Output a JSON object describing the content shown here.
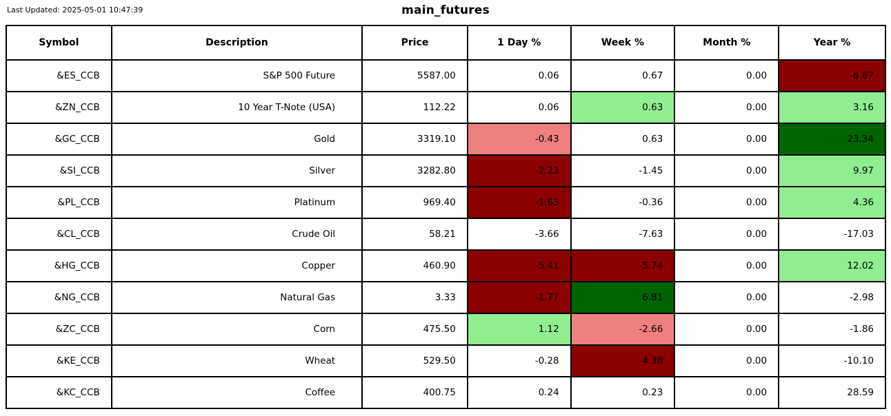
{
  "header": {
    "last_updated": "Last Updated: 2025-05-01 10:47:39",
    "title": "main_futures"
  },
  "colors": {
    "dark_red": "#8b0000",
    "light_red": "#f08080",
    "light_green": "#90ee90",
    "dark_green": "#006400",
    "border": "#000000",
    "background": "#ffffff"
  },
  "table": {
    "columns": [
      "Symbol",
      "Description",
      "Price",
      "1 Day %",
      "Week %",
      "Month %",
      "Year %"
    ],
    "col_widths_pct": [
      11.98,
      28.5,
      11.98,
      11.75,
      11.82,
      11.82,
      12.15
    ],
    "rows": [
      {
        "symbol": "&ES_CCB",
        "description": "S&P 500 Future",
        "price": "5587.00",
        "pct": [
          {
            "t": "0.06",
            "bg": "none"
          },
          {
            "t": "0.67",
            "bg": "none"
          },
          {
            "t": "0.00",
            "bg": "none"
          },
          {
            "t": "-6.67",
            "bg": "dark_red"
          }
        ]
      },
      {
        "symbol": "&ZN_CCB",
        "description": "10 Year T-Note (USA)",
        "price": "112.22",
        "pct": [
          {
            "t": "0.06",
            "bg": "none"
          },
          {
            "t": "0.63",
            "bg": "light_green"
          },
          {
            "t": "0.00",
            "bg": "none"
          },
          {
            "t": "3.16",
            "bg": "light_green"
          }
        ]
      },
      {
        "symbol": "&GC_CCB",
        "description": "Gold",
        "price": "3319.10",
        "pct": [
          {
            "t": "-0.43",
            "bg": "light_red"
          },
          {
            "t": "0.63",
            "bg": "none"
          },
          {
            "t": "0.00",
            "bg": "none"
          },
          {
            "t": "23.34",
            "bg": "dark_green"
          }
        ]
      },
      {
        "symbol": "&SI_CCB",
        "description": "Silver",
        "price": "3282.80",
        "pct": [
          {
            "t": "-2.23",
            "bg": "dark_red"
          },
          {
            "t": "-1.45",
            "bg": "none"
          },
          {
            "t": "0.00",
            "bg": "none"
          },
          {
            "t": "9.97",
            "bg": "light_green"
          }
        ]
      },
      {
        "symbol": "&PL_CCB",
        "description": "Platinum",
        "price": "969.40",
        "pct": [
          {
            "t": "-1.63",
            "bg": "dark_red"
          },
          {
            "t": "-0.36",
            "bg": "none"
          },
          {
            "t": "0.00",
            "bg": "none"
          },
          {
            "t": "4.36",
            "bg": "light_green"
          }
        ]
      },
      {
        "symbol": "&CL_CCB",
        "description": "Crude Oil",
        "price": "58.21",
        "pct": [
          {
            "t": "-3.66",
            "bg": "none"
          },
          {
            "t": "-7.63",
            "bg": "none"
          },
          {
            "t": "0.00",
            "bg": "none"
          },
          {
            "t": "-17.03",
            "bg": "none"
          }
        ]
      },
      {
        "symbol": "&HG_CCB",
        "description": "Copper",
        "price": "460.90",
        "pct": [
          {
            "t": "-5.41",
            "bg": "dark_red"
          },
          {
            "t": "-5.74",
            "bg": "dark_red"
          },
          {
            "t": "0.00",
            "bg": "none"
          },
          {
            "t": "12.02",
            "bg": "light_green"
          }
        ]
      },
      {
        "symbol": "&NG_CCB",
        "description": "Natural Gas",
        "price": "3.33",
        "pct": [
          {
            "t": "-1.77",
            "bg": "dark_red"
          },
          {
            "t": "6.81",
            "bg": "dark_green"
          },
          {
            "t": "0.00",
            "bg": "none"
          },
          {
            "t": "-2.98",
            "bg": "none"
          }
        ]
      },
      {
        "symbol": "&ZC_CCB",
        "description": "Corn",
        "price": "475.50",
        "pct": [
          {
            "t": "1.12",
            "bg": "light_green"
          },
          {
            "t": "-2.66",
            "bg": "light_red"
          },
          {
            "t": "0.00",
            "bg": "none"
          },
          {
            "t": "-1.86",
            "bg": "none"
          }
        ]
      },
      {
        "symbol": "&KE_CCB",
        "description": "Wheat",
        "price": "529.50",
        "pct": [
          {
            "t": "-0.28",
            "bg": "none"
          },
          {
            "t": "-4.38",
            "bg": "dark_red"
          },
          {
            "t": "0.00",
            "bg": "none"
          },
          {
            "t": "-10.10",
            "bg": "none"
          }
        ]
      },
      {
        "symbol": "&KC_CCB",
        "description": "Coffee",
        "price": "400.75",
        "pct": [
          {
            "t": "0.24",
            "bg": "none"
          },
          {
            "t": "0.23",
            "bg": "none"
          },
          {
            "t": "0.00",
            "bg": "none"
          },
          {
            "t": "28.59",
            "bg": "none"
          }
        ]
      }
    ]
  },
  "chart_data": {
    "type": "table",
    "title": "main_futures",
    "columns": [
      "Symbol",
      "Description",
      "Price",
      "1 Day %",
      "Week %",
      "Month %",
      "Year %"
    ],
    "rows": [
      [
        "&ES_CCB",
        "S&P 500 Future",
        5587.0,
        0.06,
        0.67,
        0.0,
        -6.67
      ],
      [
        "&ZN_CCB",
        "10 Year T-Note (USA)",
        112.22,
        0.06,
        0.63,
        0.0,
        3.16
      ],
      [
        "&GC_CCB",
        "Gold",
        3319.1,
        -0.43,
        0.63,
        0.0,
        23.34
      ],
      [
        "&SI_CCB",
        "Silver",
        3282.8,
        -2.23,
        -1.45,
        0.0,
        9.97
      ],
      [
        "&PL_CCB",
        "Platinum",
        969.4,
        -1.63,
        -0.36,
        0.0,
        4.36
      ],
      [
        "&CL_CCB",
        "Crude Oil",
        58.21,
        -3.66,
        -7.63,
        0.0,
        -17.03
      ],
      [
        "&HG_CCB",
        "Copper",
        460.9,
        -5.41,
        -5.74,
        0.0,
        12.02
      ],
      [
        "&NG_CCB",
        "Natural Gas",
        3.33,
        -1.77,
        6.81,
        0.0,
        -2.98
      ],
      [
        "&ZC_CCB",
        "Corn",
        475.5,
        1.12,
        -2.66,
        0.0,
        -1.86
      ],
      [
        "&KE_CCB",
        "Wheat",
        529.5,
        -0.28,
        -4.38,
        0.0,
        -10.1
      ],
      [
        "&KC_CCB",
        "Coffee",
        400.75,
        0.24,
        0.23,
        0.0,
        28.59
      ]
    ]
  }
}
